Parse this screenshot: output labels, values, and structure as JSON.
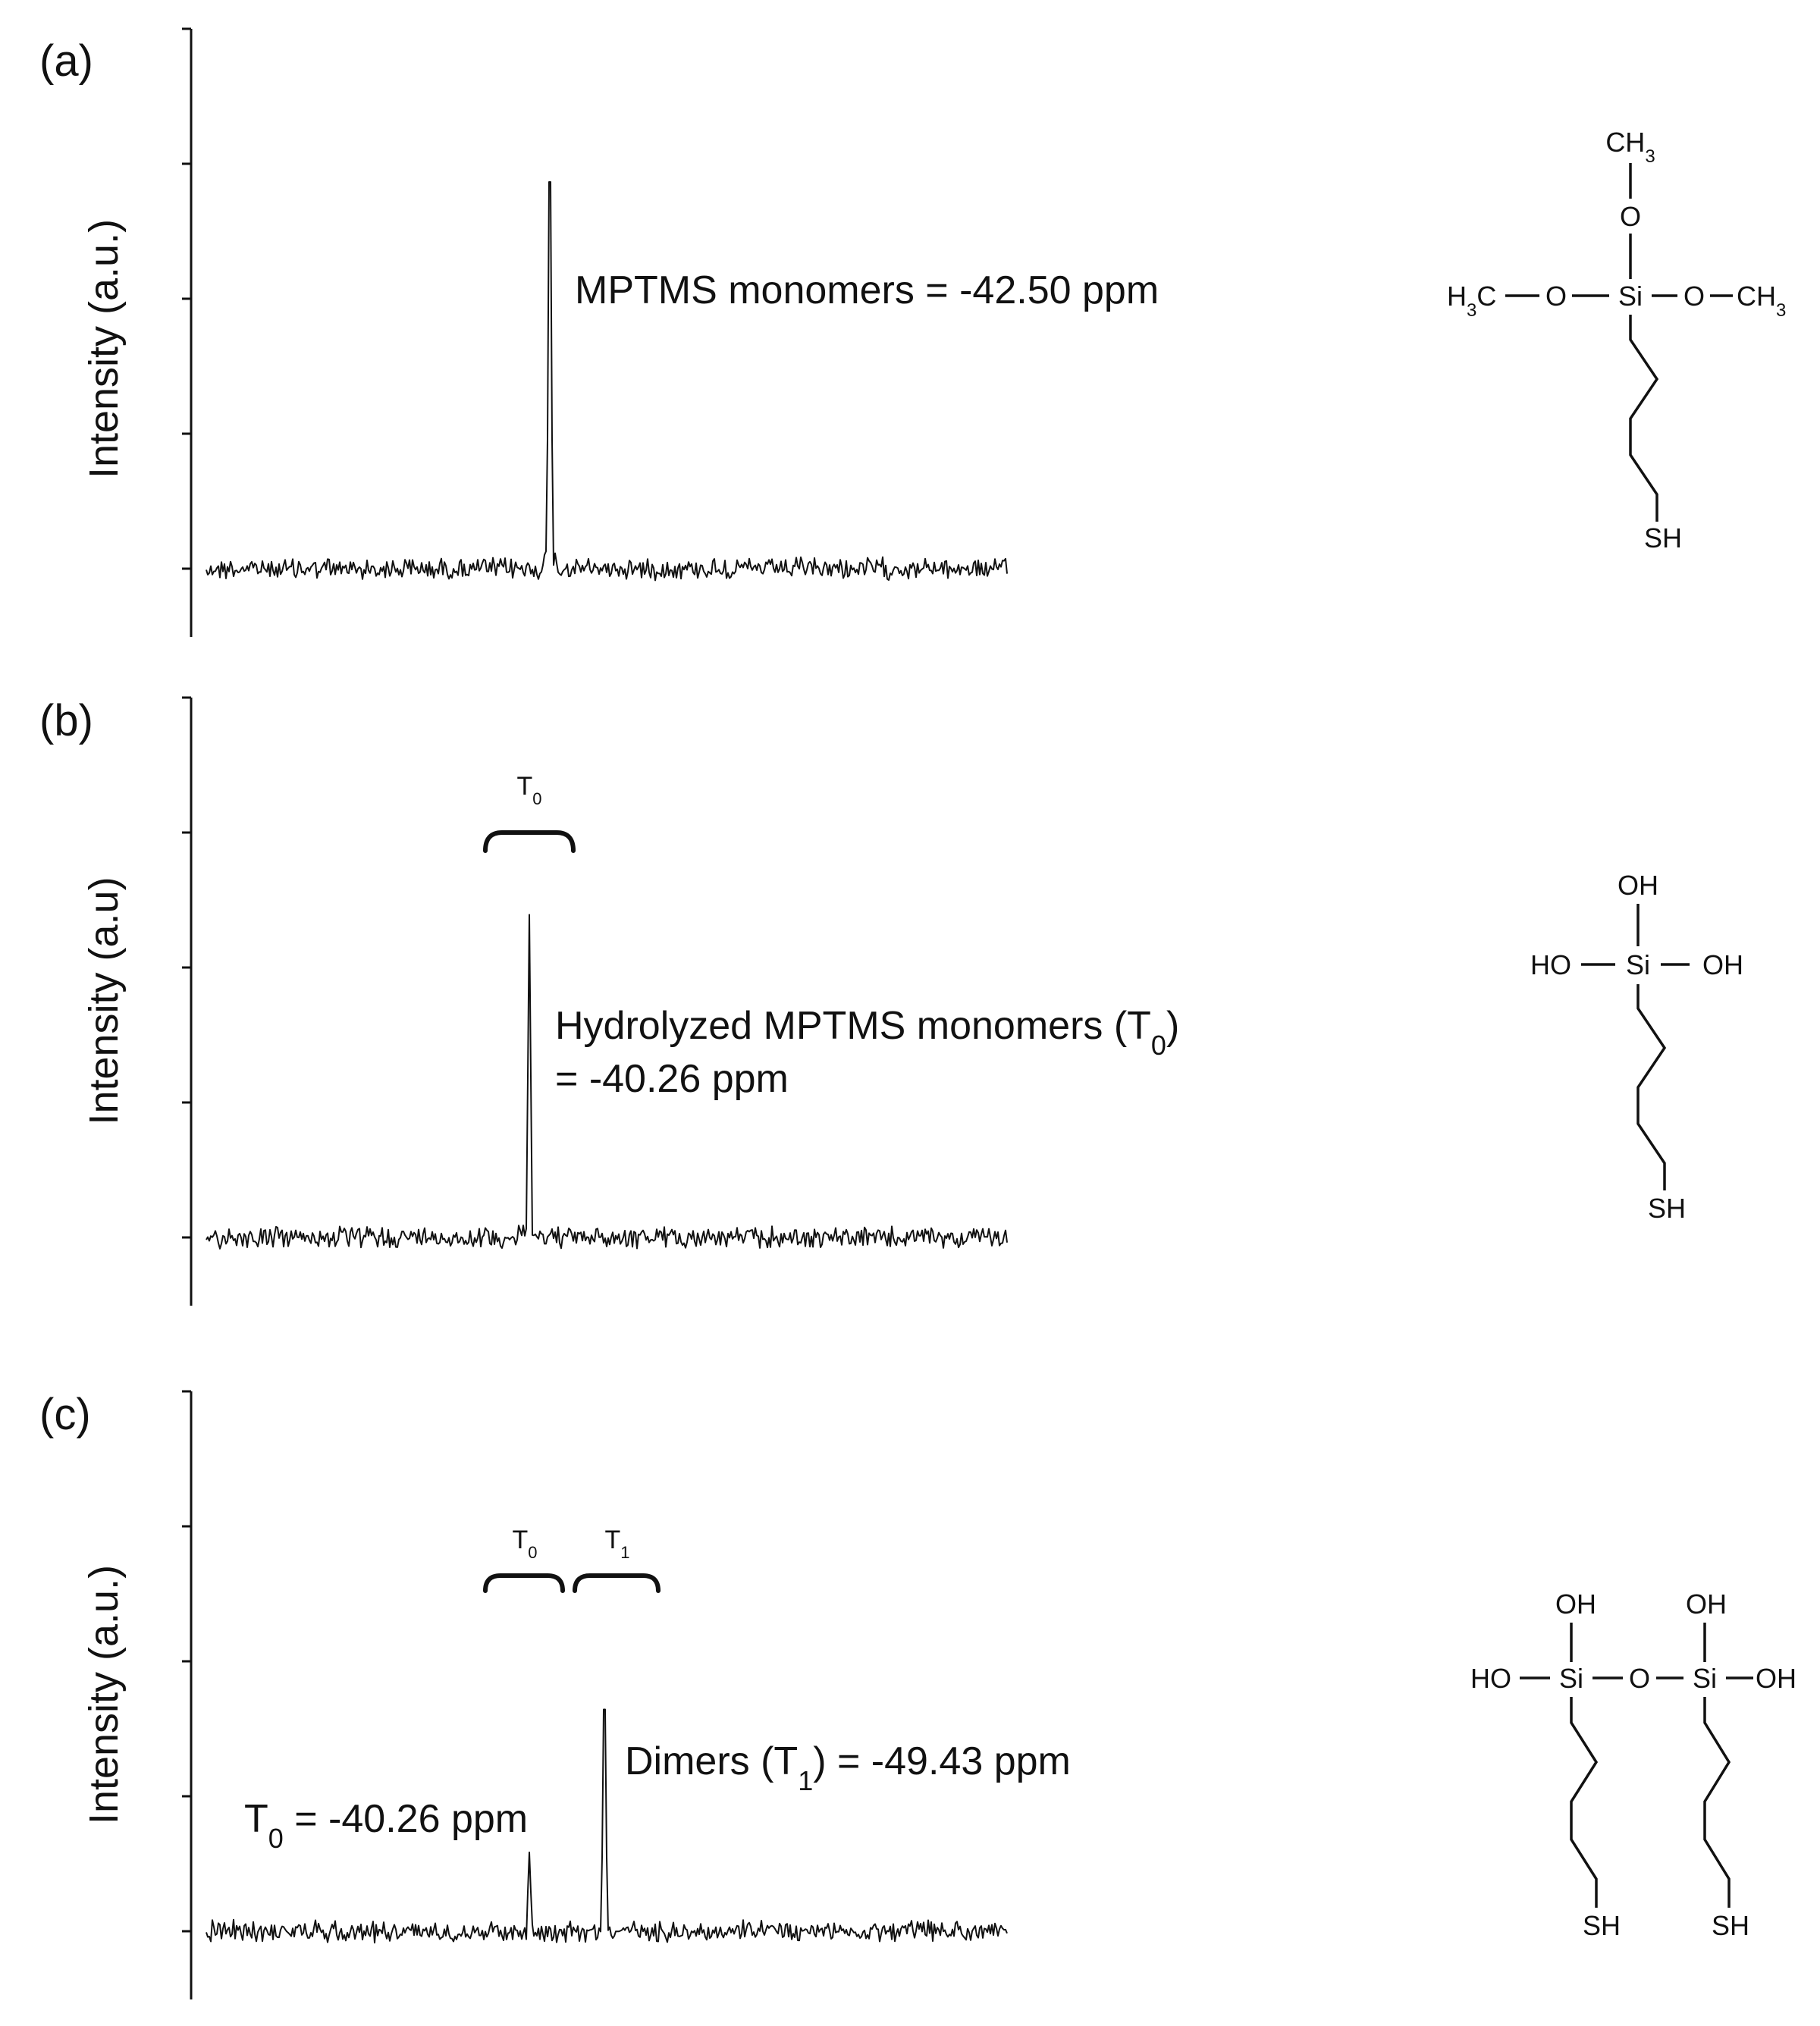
{
  "chart_data": [
    {
      "type": "line",
      "panel_label": "(a)",
      "ylabel": "Intensity (a.u.)",
      "xlabel": "",
      "peaks": [
        {
          "shift_ppm": -42.5,
          "relative_height": 1.0
        }
      ],
      "annotations": [
        "MPTMS monomers = -42.50 ppm"
      ],
      "brackets": [],
      "structure": {
        "name": "mptms-monomer",
        "labels": {
          "top": "CH3",
          "o_top": "O",
          "left": "H3C",
          "o_left": "O",
          "si": "Si",
          "o_right": "O",
          "right": "CH3",
          "end": "SH"
        }
      }
    },
    {
      "type": "line",
      "panel_label": "(b)",
      "ylabel": "Intensity (a.u)",
      "xlabel": "",
      "peaks": [
        {
          "shift_ppm": -40.26,
          "relative_height": 0.76
        }
      ],
      "annotations": [
        "Hydrolyzed MPTMS monomers (T0)",
        "= -40.26 ppm"
      ],
      "brackets": [
        {
          "label": "T0"
        }
      ],
      "structure": {
        "name": "hydrolyzed-monomer",
        "labels": {
          "top": "OH",
          "left": "HO",
          "si": "Si",
          "right": "OH",
          "end": "SH"
        }
      }
    },
    {
      "type": "line",
      "panel_label": "(c)",
      "ylabel": "Intensity (a.u.)",
      "xlabel": "",
      "peaks": [
        {
          "shift_ppm": -40.26,
          "relative_height": 0.2
        },
        {
          "shift_ppm": -49.43,
          "relative_height": 0.75
        }
      ],
      "annotations": [
        "T0 = -40.26 ppm",
        "Dimers (T1) = -49.43 ppm"
      ],
      "brackets": [
        {
          "label": "T0"
        },
        {
          "label": "T1"
        }
      ],
      "structure": {
        "name": "dimer",
        "labels": {
          "oh1": "OH",
          "oh2": "OH",
          "left": "HO",
          "si1": "Si",
          "o_mid": "O",
          "si2": "Si",
          "right": "OH",
          "sh1": "SH",
          "sh2": "SH"
        }
      }
    }
  ]
}
